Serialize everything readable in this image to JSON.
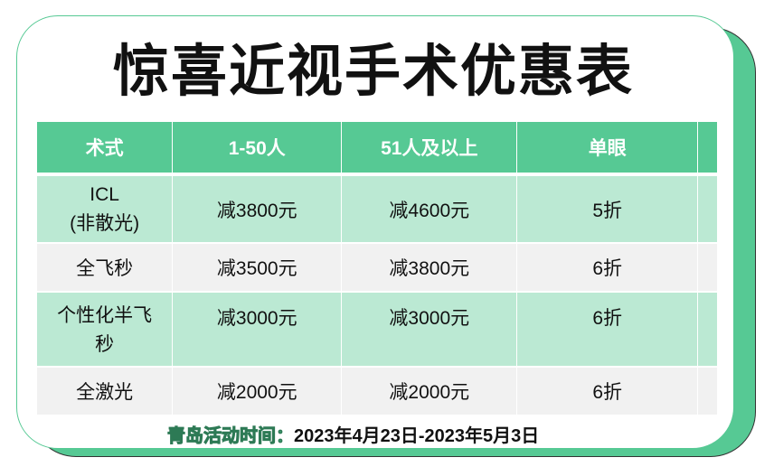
{
  "title": "惊喜近视手术优惠表",
  "table": {
    "headers": [
      "术式",
      "1-50人",
      "51人及以上",
      "单眼",
      ""
    ],
    "rows": [
      [
        "ICL\n(非散光)",
        "减3800元",
        "减4600元",
        "5折",
        ""
      ],
      [
        "全飞秒",
        "减3500元",
        "减3800元",
        "6折",
        ""
      ],
      [
        "个性化半飞\n秒",
        "减3000元",
        "减3000元",
        "6折",
        ""
      ],
      [
        "全激光",
        "减2000元",
        "减2000元",
        "6折",
        ""
      ]
    ]
  },
  "footer": {
    "label": "青岛活动时间：",
    "dates": "2023年4月23日-2023年5月3日"
  },
  "colors": {
    "accent": "#56c994",
    "row_green": "#bbe9d3",
    "row_gray": "#f1f1f1"
  }
}
